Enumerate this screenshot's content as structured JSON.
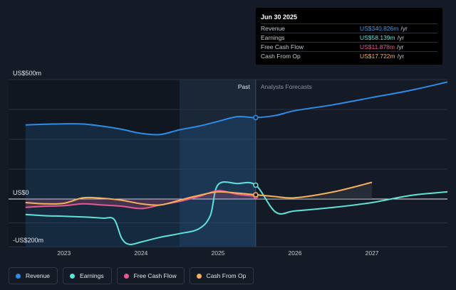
{
  "tooltip": {
    "date": "Jun 30 2025",
    "rows": [
      {
        "name": "Revenue",
        "value": "US$340.826m",
        "unit": "/yr",
        "color": "#3aa0f0"
      },
      {
        "name": "Earnings",
        "value": "US$58.139m",
        "unit": "/yr",
        "color": "#5fe3d9"
      },
      {
        "name": "Free Cash Flow",
        "value": "US$11.878m",
        "unit": "/yr",
        "color": "#e8588f"
      },
      {
        "name": "Cash From Op",
        "value": "US$17.722m",
        "unit": "/yr",
        "color": "#f5b259"
      }
    ]
  },
  "legend": [
    {
      "label": "Revenue",
      "color": "#2e8ce6"
    },
    {
      "label": "Earnings",
      "color": "#5fe3d9"
    },
    {
      "label": "Free Cash Flow",
      "color": "#e8588f"
    },
    {
      "label": "Cash From Op",
      "color": "#f5b259"
    }
  ],
  "chart_data": {
    "type": "line",
    "y_tick_labels": [
      "US$500m",
      "US$0",
      "-US$200m"
    ],
    "x_tick_labels": [
      "2023",
      "2024",
      "2025",
      "2026",
      "2027"
    ],
    "region_labels": {
      "past": "Past",
      "forecast": "Analysts Forecasts"
    },
    "ylim": [
      -200,
      500
    ],
    "xlim": [
      2022.28,
      2027.98
    ],
    "past_end": 2025.49,
    "grid": true,
    "series": [
      {
        "name": "Revenue",
        "color": "#2e8ce6",
        "fill": true,
        "x": [
          2022.5,
          2022.75,
          2023.0,
          2023.25,
          2023.5,
          2023.75,
          2024.0,
          2024.25,
          2024.5,
          2024.75,
          2025.0,
          2025.25,
          2025.49,
          2025.75,
          2026.0,
          2026.5,
          2027.0,
          2027.5,
          2027.98
        ],
        "y": [
          310,
          313,
          315,
          314,
          305,
          292,
          275,
          270,
          290,
          305,
          325,
          345,
          341,
          350,
          370,
          395,
          425,
          455,
          490
        ]
      },
      {
        "name": "Earnings",
        "color": "#5fe3d9",
        "fill": false,
        "x": [
          2022.5,
          2022.75,
          2023.0,
          2023.25,
          2023.5,
          2023.65,
          2023.75,
          2023.85,
          2024.0,
          2024.25,
          2024.5,
          2024.75,
          2024.9,
          2025.0,
          2025.25,
          2025.49,
          2025.75,
          2026.0,
          2026.5,
          2027.0,
          2027.5,
          2027.98
        ],
        "y": [
          -65,
          -70,
          -72,
          -75,
          -80,
          -85,
          -165,
          -190,
          -180,
          -160,
          -145,
          -125,
          -70,
          60,
          65,
          58,
          -55,
          -50,
          -35,
          -15,
          15,
          30
        ]
      },
      {
        "name": "Free Cash Flow",
        "color": "#e8588f",
        "fill": true,
        "x": [
          2022.5,
          2022.75,
          2023.0,
          2023.25,
          2023.5,
          2023.75,
          2024.0,
          2024.25,
          2024.5,
          2024.75,
          2025.0,
          2025.25,
          2025.49
        ],
        "y": [
          -35,
          -30,
          -28,
          -20,
          -25,
          -30,
          -40,
          -25,
          -10,
          10,
          35,
          20,
          12
        ]
      },
      {
        "name": "Cash From Op",
        "color": "#f5b259",
        "fill": false,
        "x": [
          2022.5,
          2022.75,
          2023.0,
          2023.25,
          2023.5,
          2023.75,
          2024.0,
          2024.25,
          2024.5,
          2024.75,
          2025.0,
          2025.25,
          2025.49,
          2025.75,
          2026.0,
          2026.5,
          2027.0
        ],
        "y": [
          -15,
          -20,
          -18,
          5,
          3,
          -5,
          -20,
          -25,
          -5,
          15,
          30,
          25,
          18,
          10,
          5,
          30,
          70
        ]
      }
    ]
  }
}
